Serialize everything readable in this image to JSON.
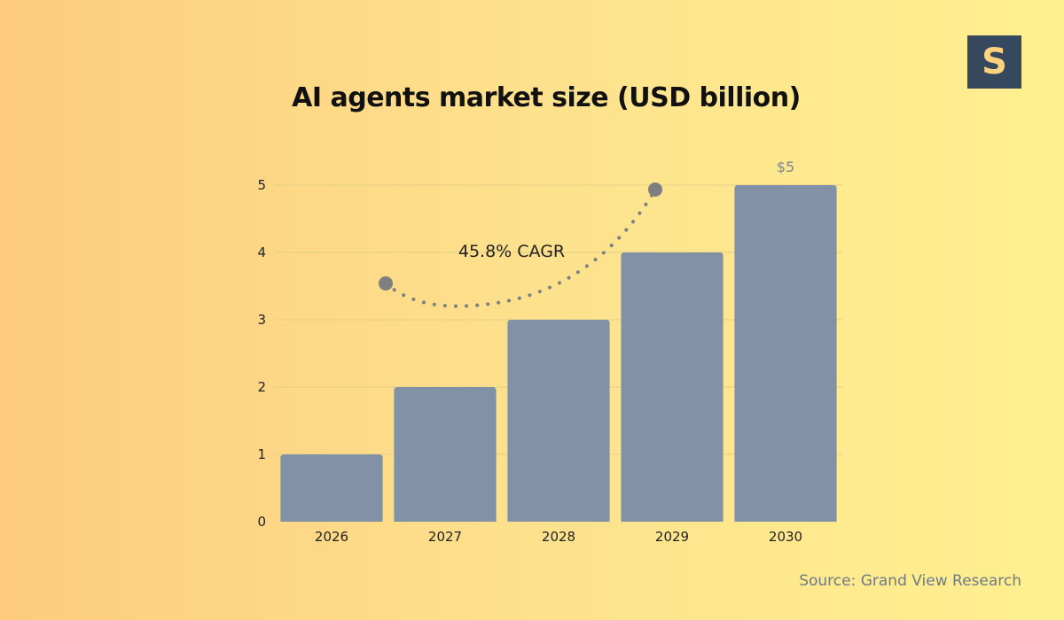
{
  "logo": {
    "letter": "S"
  },
  "source": "Source: Grand View Research",
  "colors": {
    "bar": "#8192a7",
    "grid": "#e3cf86",
    "annotation_line": "#7f7f7f"
  },
  "chart_data": {
    "type": "bar",
    "title": "AI agents market size (USD billion)",
    "categories": [
      "2026",
      "2027",
      "2028",
      "2029",
      "2030"
    ],
    "values": [
      1,
      2,
      3,
      4,
      5
    ],
    "ylim": [
      0,
      5
    ],
    "yticks": [
      "0",
      "1",
      "2",
      "3",
      "4",
      "5"
    ],
    "grid": true,
    "data_labels": [
      {
        "category": "2030",
        "text": "$5"
      }
    ],
    "annotation": {
      "text": "45.8% CAGR"
    }
  }
}
